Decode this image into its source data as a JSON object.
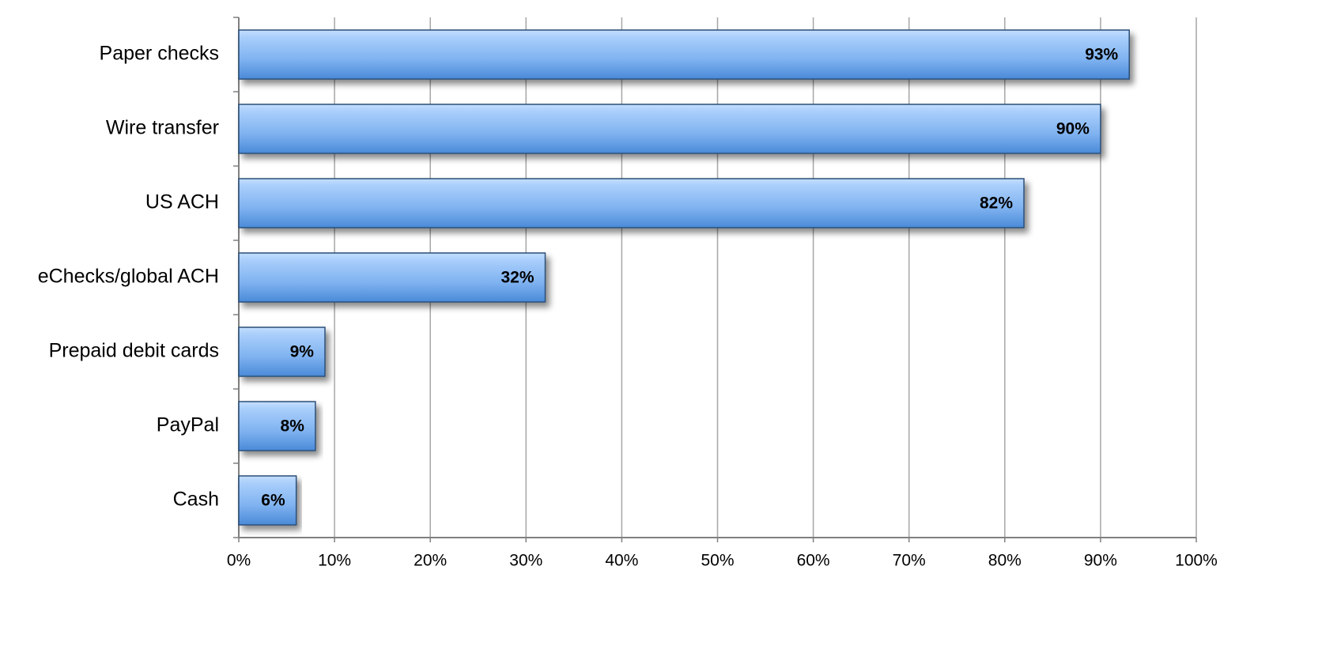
{
  "chart_data": {
    "type": "bar",
    "orientation": "horizontal",
    "categories": [
      "Paper checks",
      "Wire transfer",
      "US ACH",
      "eChecks/global ACH",
      "Prepaid debit cards",
      "PayPal",
      "Cash"
    ],
    "values": [
      93,
      90,
      82,
      32,
      9,
      8,
      6
    ],
    "value_labels": [
      "93%",
      "90%",
      "82%",
      "32%",
      "9%",
      "8%",
      "6%"
    ],
    "color": "#6fa8ee",
    "xlim": [
      0,
      100
    ],
    "xticks": [
      {
        "value": 0,
        "label": "0%"
      },
      {
        "value": 10,
        "label": "10%"
      },
      {
        "value": 20,
        "label": "20%"
      },
      {
        "value": 30,
        "label": "30%"
      },
      {
        "value": 40,
        "label": "40%"
      },
      {
        "value": 50,
        "label": "50%"
      },
      {
        "value": 60,
        "label": "60%"
      },
      {
        "value": 70,
        "label": "70%"
      },
      {
        "value": 80,
        "label": "80%"
      },
      {
        "value": 90,
        "label": "90%"
      },
      {
        "value": 100,
        "label": "100%"
      }
    ],
    "grid": true
  }
}
